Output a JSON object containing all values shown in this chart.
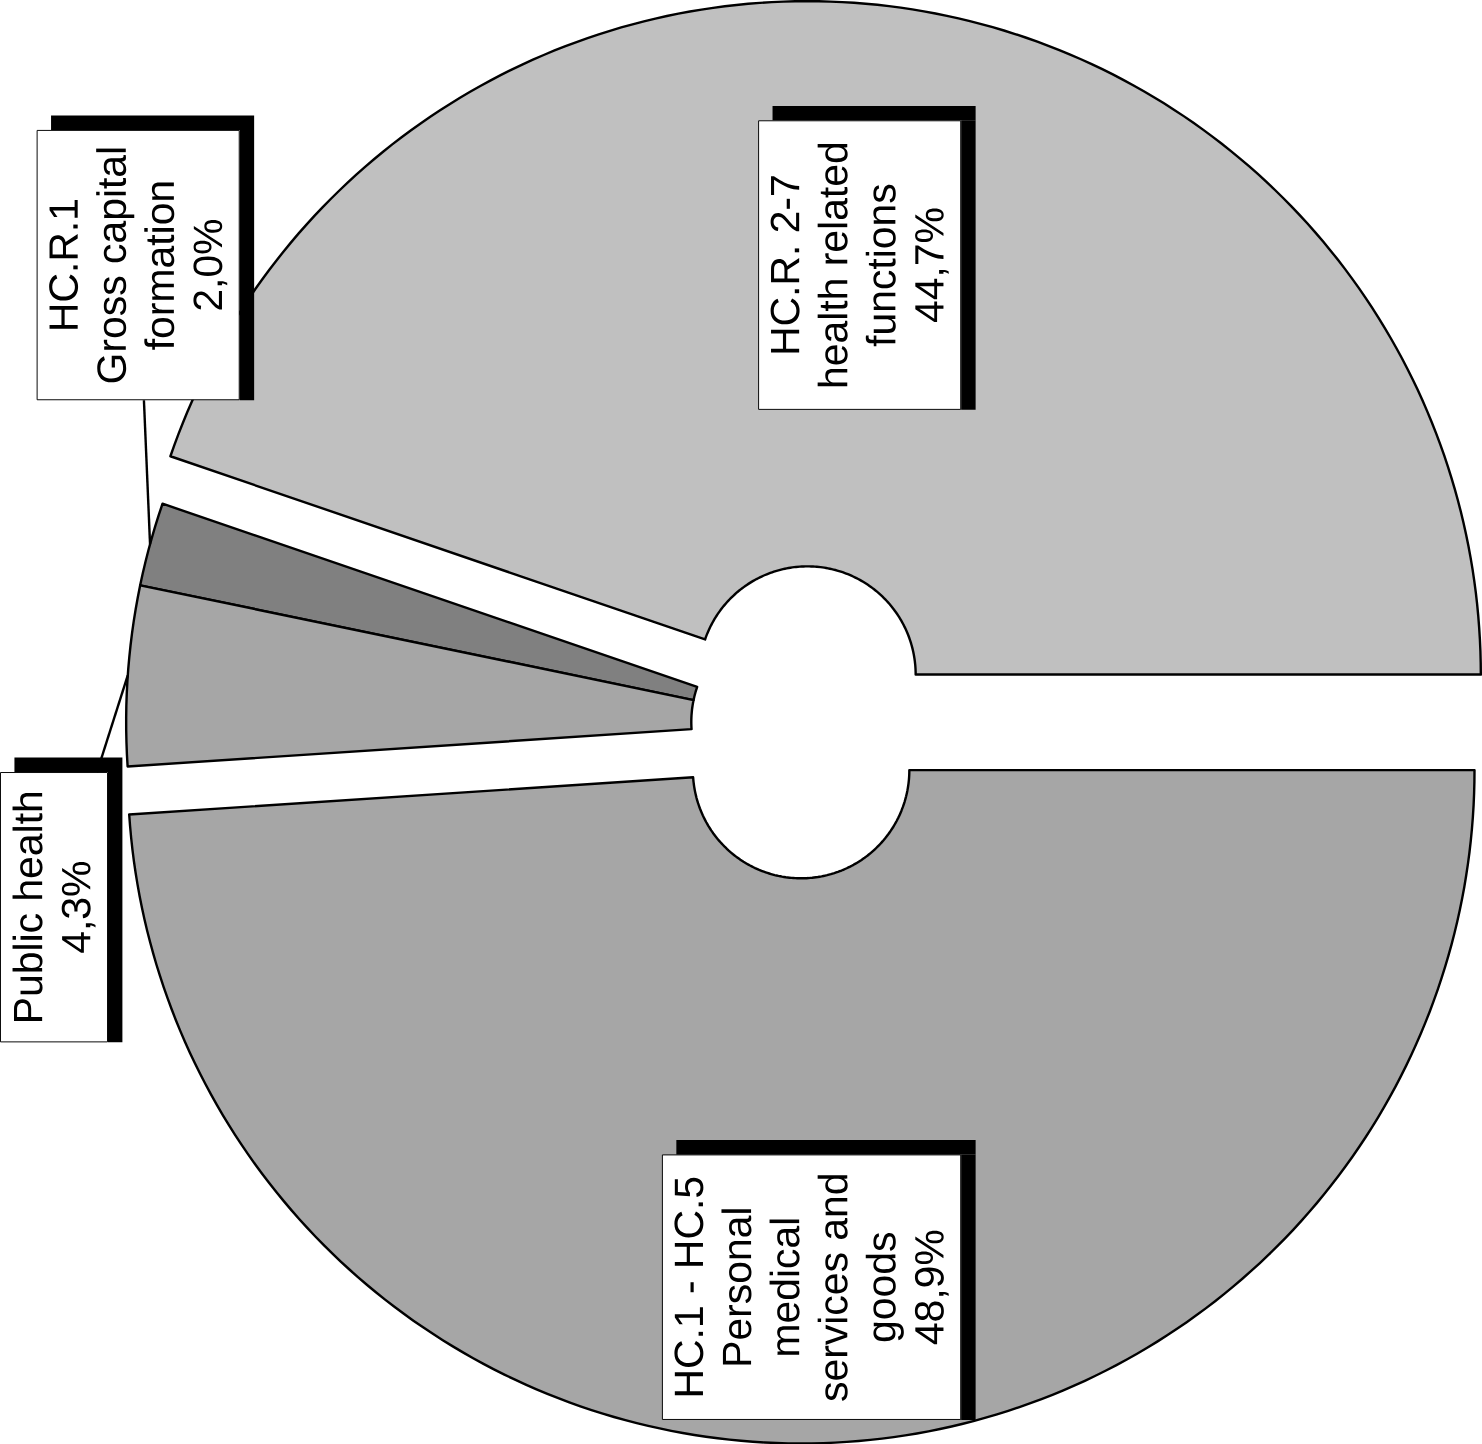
{
  "chart_data": {
    "type": "donut",
    "categories": [
      "HC.R. 2-7 health related functions",
      "HC.R.1 Gross capital formation",
      "Public health",
      "HC.1 - HC.5 Personal medical services and goods"
    ],
    "values": [
      44.7,
      2.0,
      4.3,
      48.9
    ],
    "value_labels": [
      "44,7%",
      "2,0%",
      "4,3%",
      "48,9%"
    ],
    "colors": [
      "#c0c0c0",
      "#808080",
      "#a6a6a6",
      "#a6a6a6"
    ]
  }
}
